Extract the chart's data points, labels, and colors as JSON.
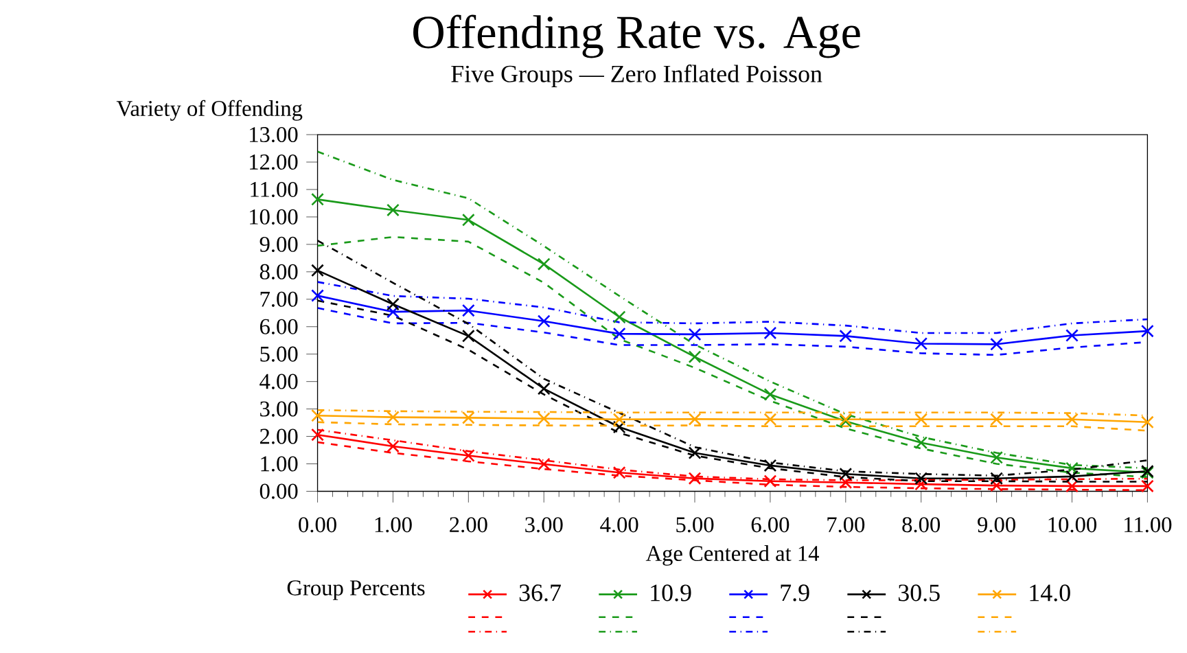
{
  "chart_data": {
    "type": "line",
    "title": "Offending Rate vs. Age",
    "subtitle": "Five Groups — Zero Inflated Poisson",
    "xlabel": "Age Centered at 14",
    "ylabel": "Variety of Offending",
    "legend_title": "Group Percents",
    "legend": "bottom",
    "grid": false,
    "x": [
      0,
      1,
      2,
      3,
      4,
      5,
      6,
      7,
      8,
      9,
      10,
      11
    ],
    "xlim": [
      0,
      11
    ],
    "ylim": [
      0,
      13
    ],
    "xticks": [
      {
        "value": 0,
        "label": "0.00"
      },
      {
        "value": 1,
        "label": "1.00"
      },
      {
        "value": 2,
        "label": "2.00"
      },
      {
        "value": 3,
        "label": "3.00"
      },
      {
        "value": 4,
        "label": "4.00"
      },
      {
        "value": 5,
        "label": "5.00"
      },
      {
        "value": 6,
        "label": "6.00"
      },
      {
        "value": 7,
        "label": "7.00"
      },
      {
        "value": 8,
        "label": "8.00"
      },
      {
        "value": 9,
        "label": "9.00"
      },
      {
        "value": 10,
        "label": "10.00"
      },
      {
        "value": 11,
        "label": "11.00"
      }
    ],
    "yticks": [
      {
        "value": 0,
        "label": "0.00"
      },
      {
        "value": 1,
        "label": "1.00"
      },
      {
        "value": 2,
        "label": "2.00"
      },
      {
        "value": 3,
        "label": "3.00"
      },
      {
        "value": 4,
        "label": "4.00"
      },
      {
        "value": 5,
        "label": "5.00"
      },
      {
        "value": 6,
        "label": "6.00"
      },
      {
        "value": 7,
        "label": "7.00"
      },
      {
        "value": 8,
        "label": "8.00"
      },
      {
        "value": 9,
        "label": "9.00"
      },
      {
        "value": 10,
        "label": "10.00"
      },
      {
        "value": 11,
        "label": "11.00"
      },
      {
        "value": 12,
        "label": "12.00"
      },
      {
        "value": 13,
        "label": "13.00"
      }
    ],
    "series": [
      {
        "name": "36.7",
        "color": "#ff0000",
        "line_style": "solid",
        "marker": "cross",
        "values": [
          2.06,
          1.64,
          1.3,
          0.99,
          0.68,
          0.47,
          0.37,
          0.32,
          0.26,
          0.21,
          0.19,
          0.19
        ]
      },
      {
        "color": "#ff0000",
        "line_style": "dashed",
        "marker": "none",
        "values": [
          1.79,
          1.4,
          1.09,
          0.81,
          0.57,
          0.4,
          0.24,
          0.16,
          0.11,
          0.08,
          0.06,
          0.04
        ]
      },
      {
        "color": "#ff0000",
        "line_style": "dashdot",
        "marker": "none",
        "values": [
          2.24,
          1.86,
          1.46,
          1.13,
          0.79,
          0.54,
          0.44,
          0.4,
          0.4,
          0.42,
          0.44,
          0.46
        ]
      },
      {
        "name": "10.9",
        "color": "#1a9a1a",
        "line_style": "solid",
        "marker": "cross",
        "values": [
          10.64,
          10.25,
          9.89,
          8.28,
          6.35,
          4.9,
          3.53,
          2.55,
          1.77,
          1.23,
          0.84,
          0.68
        ]
      },
      {
        "color": "#1a9a1a",
        "line_style": "dashed",
        "marker": "none",
        "values": [
          8.95,
          9.27,
          9.1,
          7.6,
          5.55,
          4.5,
          3.3,
          2.29,
          1.56,
          1.0,
          0.68,
          0.52
        ]
      },
      {
        "color": "#1a9a1a",
        "line_style": "dashdot",
        "marker": "none",
        "values": [
          12.38,
          11.35,
          10.68,
          8.94,
          7.12,
          5.35,
          4.0,
          2.81,
          1.98,
          1.4,
          0.96,
          0.84
        ]
      },
      {
        "name": "7.9",
        "color": "#0000ff",
        "line_style": "solid",
        "marker": "cross",
        "values": [
          7.13,
          6.54,
          6.59,
          6.2,
          5.74,
          5.72,
          5.77,
          5.66,
          5.38,
          5.36,
          5.68,
          5.84
        ]
      },
      {
        "color": "#0000ff",
        "line_style": "dashed",
        "marker": "none",
        "values": [
          6.68,
          6.12,
          6.14,
          5.79,
          5.33,
          5.33,
          5.36,
          5.27,
          5.03,
          4.97,
          5.24,
          5.44
        ]
      },
      {
        "color": "#0000ff",
        "line_style": "dashdot",
        "marker": "none",
        "values": [
          7.63,
          7.12,
          7.02,
          6.7,
          6.16,
          6.12,
          6.18,
          6.04,
          5.77,
          5.77,
          6.12,
          6.27
        ]
      },
      {
        "name": "30.5",
        "color": "#000000",
        "line_style": "solid",
        "marker": "cross",
        "values": [
          8.05,
          6.82,
          5.66,
          3.74,
          2.34,
          1.4,
          0.94,
          0.63,
          0.47,
          0.47,
          0.54,
          0.73
        ]
      },
      {
        "color": "#000000",
        "line_style": "dashed",
        "marker": "none",
        "values": [
          6.95,
          6.4,
          5.16,
          3.53,
          2.13,
          1.3,
          0.84,
          0.52,
          0.37,
          0.37,
          0.35,
          0.35
        ]
      },
      {
        "color": "#000000",
        "line_style": "dashdot",
        "marker": "none",
        "values": [
          9.14,
          7.6,
          6.1,
          4.1,
          2.86,
          1.61,
          1.05,
          0.73,
          0.63,
          0.57,
          0.79,
          1.13
        ]
      },
      {
        "name": "14.0",
        "color": "#ffa500",
        "line_style": "solid",
        "marker": "cross",
        "values": [
          2.76,
          2.7,
          2.68,
          2.65,
          2.62,
          2.63,
          2.62,
          2.62,
          2.62,
          2.62,
          2.62,
          2.52
        ]
      },
      {
        "color": "#ffa500",
        "line_style": "dashed",
        "marker": "none",
        "values": [
          2.52,
          2.44,
          2.42,
          2.4,
          2.39,
          2.4,
          2.37,
          2.37,
          2.37,
          2.37,
          2.37,
          2.21
        ]
      },
      {
        "color": "#ffa500",
        "line_style": "dashdot",
        "marker": "none",
        "values": [
          2.96,
          2.92,
          2.9,
          2.89,
          2.87,
          2.87,
          2.87,
          2.87,
          2.87,
          2.87,
          2.85,
          2.76
        ]
      }
    ]
  }
}
